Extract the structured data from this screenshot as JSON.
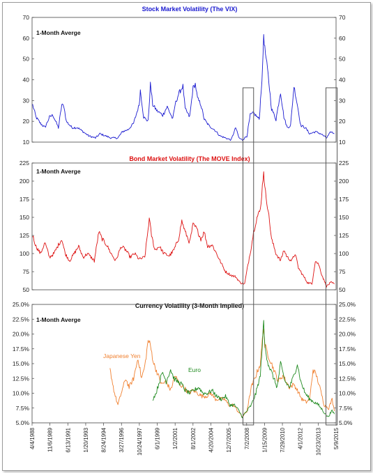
{
  "colors": {
    "vix": "#1a1ad0",
    "move": "#dd1111",
    "yen": "#f08030",
    "euro": "#1f8a1f",
    "axis": "#444444",
    "box": "#555555"
  },
  "x_tick_labels": [
    "4/4/1988",
    "11/6/1989",
    "6/13/1991",
    "1/20/1993",
    "8/24/1994",
    "3/27/1996",
    "10/24/1997",
    "6/1/1999",
    "1/2/2001",
    "8/1/2002",
    "4/20/2004",
    "12/7/2005",
    "7/2/2008",
    "1/15/2009",
    "7/29/2010",
    "4/1/2012",
    "10/23/2013",
    "5/9/2015"
  ],
  "chart_data": [
    {
      "type": "line",
      "title": "Stock Market Volatility (The VIX)",
      "annotation": "1-Month Averge",
      "ylim": [
        10,
        70
      ],
      "yticks": [
        "10",
        "20",
        "30",
        "40",
        "50",
        "60",
        "70"
      ],
      "grid": false,
      "series": [
        {
          "name": "VIX",
          "values": [
            [
              1988.3,
              28
            ],
            [
              1988.6,
              22
            ],
            [
              1989.0,
              19
            ],
            [
              1989.4,
              17
            ],
            [
              1989.8,
              22
            ],
            [
              1990.1,
              23
            ],
            [
              1990.6,
              17
            ],
            [
              1990.9,
              28
            ],
            [
              1991.1,
              27
            ],
            [
              1991.3,
              20
            ],
            [
              1991.8,
              17
            ],
            [
              1992.3,
              17
            ],
            [
              1992.8,
              15
            ],
            [
              1993.3,
              13
            ],
            [
              1993.9,
              12
            ],
            [
              1994.3,
              14
            ],
            [
              1994.8,
              13
            ],
            [
              1995.3,
              12
            ],
            [
              1995.9,
              12
            ],
            [
              1996.3,
              15
            ],
            [
              1996.8,
              16
            ],
            [
              1997.3,
              19
            ],
            [
              1997.8,
              28
            ],
            [
              1997.9,
              35
            ],
            [
              1998.2,
              22
            ],
            [
              1998.6,
              20
            ],
            [
              1998.8,
              38
            ],
            [
              1999.0,
              28
            ],
            [
              1999.4,
              25
            ],
            [
              1999.9,
              23
            ],
            [
              2000.3,
              27
            ],
            [
              2000.8,
              21
            ],
            [
              2001.0,
              28
            ],
            [
              2001.3,
              33
            ],
            [
              2001.7,
              37
            ],
            [
              2001.9,
              26
            ],
            [
              2002.3,
              22
            ],
            [
              2002.6,
              36
            ],
            [
              2002.8,
              38
            ],
            [
              2003.0,
              31
            ],
            [
              2003.3,
              28
            ],
            [
              2003.6,
              21
            ],
            [
              2004.0,
              18
            ],
            [
              2004.5,
              16
            ],
            [
              2005.0,
              13
            ],
            [
              2005.5,
              12
            ],
            [
              2006.0,
              11
            ],
            [
              2006.4,
              17
            ],
            [
              2006.7,
              12
            ],
            [
              2007.0,
              11
            ],
            [
              2007.4,
              13
            ],
            [
              2007.7,
              23
            ],
            [
              2008.0,
              24
            ],
            [
              2008.5,
              21
            ],
            [
              2008.8,
              45
            ],
            [
              2008.9,
              62
            ],
            [
              2009.0,
              55
            ],
            [
              2009.3,
              42
            ],
            [
              2009.6,
              26
            ],
            [
              2010.0,
              21
            ],
            [
              2010.4,
              34
            ],
            [
              2010.7,
              22
            ],
            [
              2011.0,
              17
            ],
            [
              2011.3,
              18
            ],
            [
              2011.6,
              37
            ],
            [
              2011.9,
              28
            ],
            [
              2012.2,
              18
            ],
            [
              2012.6,
              17
            ],
            [
              2013.0,
              14
            ],
            [
              2013.5,
              15
            ],
            [
              2014.0,
              14
            ],
            [
              2014.5,
              12
            ],
            [
              2014.9,
              15
            ],
            [
              2015.2,
              14
            ]
          ]
        }
      ]
    },
    {
      "type": "line",
      "title": "Bond Market Volatility (The MOVE Index)",
      "annotation": "1-Month Averge",
      "ylim": [
        50,
        225
      ],
      "yticks": [
        "50",
        "75",
        "100",
        "125",
        "150",
        "175",
        "200",
        "225"
      ],
      "grid": false,
      "series": [
        {
          "name": "MOVE",
          "values": [
            [
              1988.3,
              125
            ],
            [
              1988.6,
              110
            ],
            [
              1989.0,
              100
            ],
            [
              1989.4,
              115
            ],
            [
              1989.8,
              95
            ],
            [
              1990.2,
              100
            ],
            [
              1990.6,
              112
            ],
            [
              1990.9,
              120
            ],
            [
              1991.2,
              100
            ],
            [
              1991.6,
              90
            ],
            [
              1992.0,
              100
            ],
            [
              1992.4,
              110
            ],
            [
              1992.8,
              95
            ],
            [
              1993.2,
              100
            ],
            [
              1993.8,
              90
            ],
            [
              1994.2,
              130
            ],
            [
              1994.5,
              120
            ],
            [
              1994.9,
              112
            ],
            [
              1995.3,
              100
            ],
            [
              1995.7,
              90
            ],
            [
              1996.2,
              110
            ],
            [
              1996.6,
              105
            ],
            [
              1997.0,
              95
            ],
            [
              1997.4,
              100
            ],
            [
              1997.8,
              92
            ],
            [
              1998.3,
              95
            ],
            [
              1998.7,
              148
            ],
            [
              1998.9,
              125
            ],
            [
              1999.2,
              105
            ],
            [
              1999.6,
              110
            ],
            [
              2000.0,
              100
            ],
            [
              2000.5,
              97
            ],
            [
              2000.9,
              105
            ],
            [
              2001.3,
              120
            ],
            [
              2001.6,
              145
            ],
            [
              2001.9,
              130
            ],
            [
              2002.3,
              115
            ],
            [
              2002.6,
              140
            ],
            [
              2002.9,
              135
            ],
            [
              2003.3,
              120
            ],
            [
              2003.6,
              130
            ],
            [
              2003.9,
              110
            ],
            [
              2004.3,
              112
            ],
            [
              2004.7,
              100
            ],
            [
              2005.0,
              90
            ],
            [
              2005.5,
              75
            ],
            [
              2006.0,
              70
            ],
            [
              2006.4,
              68
            ],
            [
              2006.8,
              60
            ],
            [
              2007.2,
              58
            ],
            [
              2007.5,
              85
            ],
            [
              2007.8,
              110
            ],
            [
              2008.0,
              130
            ],
            [
              2008.3,
              150
            ],
            [
              2008.6,
              160
            ],
            [
              2008.9,
              215
            ],
            [
              2009.0,
              190
            ],
            [
              2009.3,
              160
            ],
            [
              2009.6,
              120
            ],
            [
              2010.0,
              100
            ],
            [
              2010.4,
              90
            ],
            [
              2010.7,
              105
            ],
            [
              2011.0,
              95
            ],
            [
              2011.4,
              90
            ],
            [
              2011.7,
              100
            ],
            [
              2012.0,
              80
            ],
            [
              2012.4,
              70
            ],
            [
              2012.8,
              60
            ],
            [
              2013.2,
              58
            ],
            [
              2013.5,
              90
            ],
            [
              2013.8,
              85
            ],
            [
              2014.1,
              70
            ],
            [
              2014.5,
              55
            ],
            [
              2014.9,
              60
            ],
            [
              2015.2,
              58
            ]
          ]
        }
      ]
    },
    {
      "type": "line",
      "title": "Currency Volatility (3-Month Implied)",
      "annotation": "1-Month Averge",
      "ylim": [
        5,
        25
      ],
      "yticks": [
        "5.0%",
        "7.5%",
        "10.0%",
        "12.5%",
        "15.0%",
        "17.5%",
        "20.0%",
        "22.5%",
        "25.0%"
      ],
      "grid": false,
      "series": [
        {
          "name": "Japanese Yen",
          "values": [
            [
              1995.2,
              14
            ],
            [
              1995.6,
              10
            ],
            [
              1995.9,
              8
            ],
            [
              1996.2,
              10
            ],
            [
              1996.6,
              12.5
            ],
            [
              1996.9,
              11
            ],
            [
              1997.3,
              12.5
            ],
            [
              1997.7,
              16
            ],
            [
              1998.0,
              12.5
            ],
            [
              1998.3,
              14.5
            ],
            [
              1998.6,
              19
            ],
            [
              1998.8,
              18
            ],
            [
              1999.1,
              15
            ],
            [
              1999.4,
              13.5
            ],
            [
              1999.8,
              11.5
            ],
            [
              2000.2,
              12
            ],
            [
              2000.6,
              10.5
            ],
            [
              2001.0,
              13
            ],
            [
              2001.4,
              11.5
            ],
            [
              2001.8,
              11
            ],
            [
              2002.2,
              10
            ],
            [
              2002.6,
              10.5
            ],
            [
              2003.0,
              10
            ],
            [
              2003.4,
              9.5
            ],
            [
              2003.8,
              9.5
            ],
            [
              2004.2,
              10
            ],
            [
              2004.6,
              9
            ],
            [
              2005.0,
              9
            ],
            [
              2005.4,
              9
            ],
            [
              2005.8,
              8
            ],
            [
              2006.2,
              8
            ],
            [
              2006.6,
              7
            ],
            [
              2007.0,
              6
            ],
            [
              2007.4,
              7
            ],
            [
              2007.8,
              11
            ],
            [
              2008.2,
              13
            ],
            [
              2008.6,
              15
            ],
            [
              2008.9,
              21.5
            ],
            [
              2009.0,
              18
            ],
            [
              2009.4,
              16
            ],
            [
              2009.8,
              14
            ],
            [
              2010.2,
              12
            ],
            [
              2010.6,
              13
            ],
            [
              2010.9,
              12
            ],
            [
              2011.2,
              11
            ],
            [
              2011.6,
              11.5
            ],
            [
              2011.9,
              10.5
            ],
            [
              2012.3,
              9
            ],
            [
              2012.7,
              8.5
            ],
            [
              2013.0,
              9
            ],
            [
              2013.3,
              14
            ],
            [
              2013.6,
              13
            ],
            [
              2013.9,
              11
            ],
            [
              2014.3,
              8
            ],
            [
              2014.7,
              7.5
            ],
            [
              2015.0,
              9
            ],
            [
              2015.2,
              7
            ]
          ]
        },
        {
          "name": "Euro",
          "values": [
            [
              1999.0,
              9
            ],
            [
              1999.3,
              10
            ],
            [
              1999.6,
              12
            ],
            [
              1999.9,
              13.5
            ],
            [
              2000.2,
              12
            ],
            [
              2000.6,
              14
            ],
            [
              2000.9,
              12.5
            ],
            [
              2001.2,
              12
            ],
            [
              2001.6,
              11.5
            ],
            [
              2001.9,
              10.5
            ],
            [
              2002.3,
              10
            ],
            [
              2002.7,
              10.5
            ],
            [
              2003.1,
              11
            ],
            [
              2003.5,
              10
            ],
            [
              2003.9,
              10
            ],
            [
              2004.3,
              10.5
            ],
            [
              2004.7,
              9.5
            ],
            [
              2005.1,
              9
            ],
            [
              2005.5,
              9.5
            ],
            [
              2005.9,
              8
            ],
            [
              2006.3,
              8
            ],
            [
              2006.7,
              7
            ],
            [
              2007.0,
              6
            ],
            [
              2007.4,
              7
            ],
            [
              2007.8,
              8
            ],
            [
              2008.2,
              10
            ],
            [
              2008.6,
              13
            ],
            [
              2008.9,
              22
            ],
            [
              2009.0,
              18
            ],
            [
              2009.3,
              15
            ],
            [
              2009.7,
              13
            ],
            [
              2010.1,
              11
            ],
            [
              2010.4,
              15
            ],
            [
              2010.8,
              12
            ],
            [
              2011.2,
              11
            ],
            [
              2011.6,
              13
            ],
            [
              2011.9,
              15
            ],
            [
              2012.2,
              12
            ],
            [
              2012.6,
              10
            ],
            [
              2013.0,
              9
            ],
            [
              2013.4,
              8.5
            ],
            [
              2013.8,
              8
            ],
            [
              2014.2,
              7
            ],
            [
              2014.6,
              6
            ],
            [
              2015.0,
              7
            ],
            [
              2015.2,
              6.5
            ]
          ]
        }
      ]
    }
  ]
}
